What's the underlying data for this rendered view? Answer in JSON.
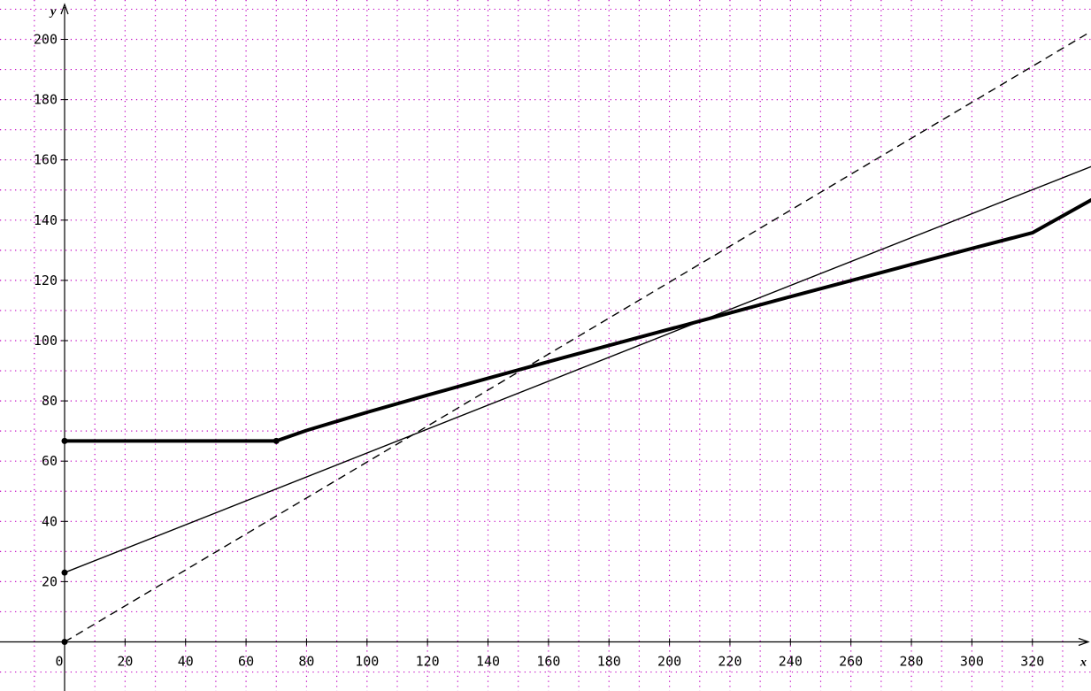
{
  "colors": {
    "grid": "#c000c0",
    "axis": "#000000",
    "background": "#ffffff"
  },
  "chart_data": {
    "type": "line",
    "title": "",
    "xlabel": "x",
    "ylabel": "y",
    "xlim": [
      -19,
      336
    ],
    "ylim": [
      -15,
      212
    ],
    "grid": true,
    "x_ticks": [
      0,
      20,
      40,
      60,
      80,
      100,
      120,
      140,
      160,
      180,
      200,
      220,
      240,
      260,
      280,
      300,
      320
    ],
    "y_ticks": [
      20,
      40,
      60,
      80,
      100,
      120,
      140,
      160,
      180,
      200
    ],
    "x_tick_labels": [
      "0",
      "20",
      "40",
      "60",
      "80",
      "100",
      "120",
      "140",
      "160",
      "180",
      "200",
      "220",
      "240",
      "260",
      "280",
      "300",
      "320"
    ],
    "y_tick_labels": [
      "20",
      "40",
      "60",
      "80",
      "100",
      "120",
      "140",
      "160",
      "180",
      "200"
    ],
    "series": [
      {
        "style": "thick-solid",
        "x": [
          0,
          70,
          80,
          100,
          120,
          140,
          160,
          180,
          200,
          220,
          240,
          260,
          280,
          300,
          320,
          340
        ],
        "y": [
          66.7,
          66.7,
          70.2,
          76.2,
          81.9,
          87.5,
          93.0,
          98.4,
          103.8,
          109.2,
          114.6,
          119.9,
          125.3,
          130.6,
          135.8,
          147
        ]
      },
      {
        "style": "thin-solid",
        "x": [
          0,
          340
        ],
        "y": [
          23,
          158
        ]
      },
      {
        "style": "dashed",
        "x": [
          0,
          340
        ],
        "y": [
          0,
          203
        ]
      }
    ],
    "markers": [
      {
        "x": 0,
        "y": 66.7
      },
      {
        "x": 70,
        "y": 66.7
      },
      {
        "x": 0,
        "y": 23
      },
      {
        "x": 0,
        "y": 0
      }
    ]
  }
}
